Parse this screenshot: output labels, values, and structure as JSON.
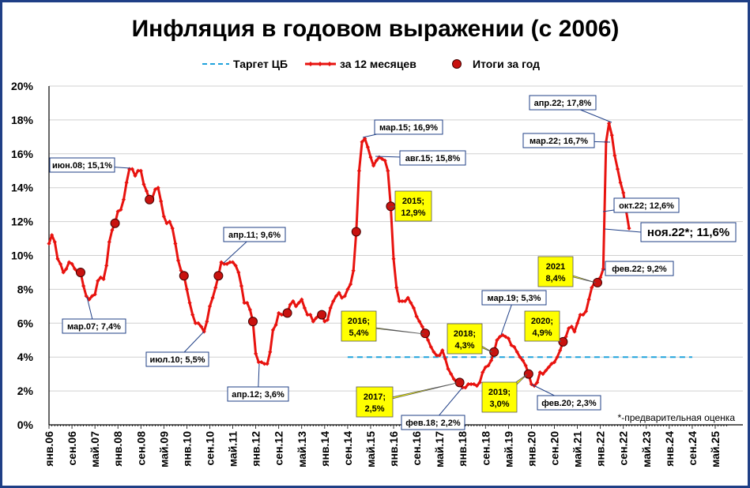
{
  "chart_data": {
    "type": "line",
    "title": "Инфляция в годовом выражении (с 2006)",
    "y_ticks": [
      "0%",
      "2%",
      "4%",
      "6%",
      "8%",
      "10%",
      "12%",
      "14%",
      "16%",
      "18%",
      "20%"
    ],
    "ylim": [
      0,
      20
    ],
    "x_ticks": [
      "янв.06",
      "сен.06",
      "май.07",
      "янв.08",
      "сен.08",
      "май.09",
      "янв.10",
      "сен.10",
      "май.11",
      "янв.12",
      "сен.12",
      "май.13",
      "янв.14",
      "сен.14",
      "май.15",
      "янв.16",
      "сен.16",
      "май.17",
      "янв.18",
      "сен.18",
      "май.19",
      "янв.20",
      "сен.20",
      "май.21",
      "янв.22",
      "сен.22",
      "май.23",
      "янв.24",
      "сен.24",
      "май.25"
    ],
    "legend": {
      "position": "top",
      "items": [
        "Таргет ЦБ",
        "за 12 месяцев",
        "Итоги за год"
      ]
    },
    "colors": {
      "monthly": "#e8130f",
      "target": "#1fa2dc",
      "year_dot": "#c8120f",
      "frame": "#1f3f86",
      "callout_yellow": "#ffff00"
    },
    "target": {
      "value": 4.0,
      "from": "сен.14",
      "to": "сен.24"
    },
    "monthly": {
      "start": "янв.06",
      "values": [
        10.7,
        11.2,
        10.8,
        9.8,
        9.5,
        9.0,
        9.2,
        9.6,
        9.5,
        9.2,
        9.0,
        9.0,
        8.2,
        7.6,
        7.4,
        7.6,
        7.7,
        8.5,
        8.7,
        8.6,
        9.4,
        10.8,
        11.5,
        11.9,
        12.6,
        12.7,
        13.3,
        14.3,
        15.1,
        15.1,
        14.7,
        15.0,
        15.0,
        14.2,
        13.8,
        13.3,
        13.4,
        13.9,
        14.0,
        13.2,
        12.3,
        11.9,
        12.0,
        11.6,
        10.7,
        9.7,
        9.1,
        8.8,
        8.0,
        7.2,
        6.5,
        6.0,
        6.0,
        5.8,
        5.5,
        6.1,
        7.0,
        7.5,
        8.1,
        8.8,
        9.6,
        9.5,
        9.5,
        9.6,
        9.6,
        9.4,
        9.0,
        8.2,
        7.2,
        7.2,
        6.8,
        6.1,
        4.2,
        3.7,
        3.7,
        3.6,
        3.6,
        4.3,
        5.6,
        5.9,
        6.6,
        6.5,
        6.5,
        6.6,
        7.1,
        7.3,
        7.0,
        7.2,
        7.4,
        6.9,
        6.5,
        6.5,
        6.1,
        6.3,
        6.5,
        6.5,
        6.1,
        6.2,
        6.9,
        7.3,
        7.6,
        7.8,
        7.5,
        7.6,
        8.0,
        8.3,
        9.1,
        11.4,
        15.0,
        16.7,
        16.9,
        16.4,
        15.8,
        15.3,
        15.6,
        15.8,
        15.7,
        15.6,
        15.0,
        12.9,
        9.8,
        8.1,
        7.3,
        7.3,
        7.3,
        7.5,
        7.2,
        6.9,
        6.4,
        6.1,
        5.8,
        5.4,
        5.0,
        4.6,
        4.3,
        4.1,
        4.1,
        4.4,
        3.9,
        3.3,
        3.0,
        2.7,
        2.5,
        2.5,
        2.2,
        2.2,
        2.4,
        2.4,
        2.4,
        2.3,
        2.5,
        3.1,
        3.4,
        3.5,
        3.8,
        4.3,
        5.0,
        5.2,
        5.3,
        5.2,
        5.1,
        4.7,
        4.6,
        4.3,
        4.0,
        3.8,
        3.5,
        3.0,
        2.4,
        2.3,
        2.5,
        3.1,
        3.0,
        3.2,
        3.4,
        3.6,
        3.7,
        4.0,
        4.4,
        4.9,
        5.2,
        5.7,
        5.8,
        5.5,
        6.0,
        6.5,
        6.5,
        6.7,
        7.4,
        8.1,
        8.4,
        8.4,
        8.7,
        9.2,
        16.7,
        17.8,
        17.1,
        15.9,
        15.1,
        14.3,
        13.7,
        12.6,
        11.6
      ]
    },
    "yearly_totals": [
      {
        "year": "2006",
        "month": "дек.06",
        "value": 9.0
      },
      {
        "year": "2007",
        "month": "дек.07",
        "value": 11.9
      },
      {
        "year": "2008",
        "month": "дек.08",
        "value": 13.3
      },
      {
        "year": "2009",
        "month": "дек.09",
        "value": 8.8
      },
      {
        "year": "2010",
        "month": "дек.10",
        "value": 8.8
      },
      {
        "year": "2011",
        "month": "дек.11",
        "value": 6.1
      },
      {
        "year": "2012",
        "month": "дек.12",
        "value": 6.6
      },
      {
        "year": "2013",
        "month": "дек.13",
        "value": 6.5
      },
      {
        "year": "2014",
        "month": "дек.14",
        "value": 11.4
      },
      {
        "year": "2015",
        "month": "дек.15",
        "value": 12.9
      },
      {
        "year": "2016",
        "month": "дек.16",
        "value": 5.4
      },
      {
        "year": "2017",
        "month": "дек.17",
        "value": 2.5
      },
      {
        "year": "2018",
        "month": "дек.18",
        "value": 4.3
      },
      {
        "year": "2019",
        "month": "дек.19",
        "value": 3.0
      },
      {
        "year": "2020",
        "month": "дек.20",
        "value": 4.9
      },
      {
        "year": "2021",
        "month": "дек.21",
        "value": 8.4
      }
    ],
    "annotations": {
      "white": [
        {
          "text": "июн.08; 15,1%"
        },
        {
          "text": "мар.07; 7,4%"
        },
        {
          "text": "июл.10; 5,5%"
        },
        {
          "text": "апр.11; 9,6%"
        },
        {
          "text": "апр.12; 3,6%"
        },
        {
          "text": "мар.15; 16,9%"
        },
        {
          "text": "авг.15; 15,8%"
        },
        {
          "text": "фев.18; 2,2%"
        },
        {
          "text": "мар.19; 5,3%"
        },
        {
          "text": "фев.20; 2,3%"
        },
        {
          "text": "апр.22; 17,8%"
        },
        {
          "text": "мар.22; 16,7%"
        },
        {
          "text": "окт.22; 12,6%"
        },
        {
          "text": "фев.22; 9,2%"
        }
      ],
      "white_big": {
        "text": "ноя.22*; 11,6%"
      },
      "yellow": [
        {
          "l1": "2015;",
          "l2": "12,9%"
        },
        {
          "l1": "2016;",
          "l2": "5,4%"
        },
        {
          "l1": "2017;",
          "l2": "2,5%"
        },
        {
          "l1": "2018;",
          "l2": "4,3%"
        },
        {
          "l1": "2019;",
          "l2": "3,0%"
        },
        {
          "l1": "2020;",
          "l2": "4,9%"
        },
        {
          "l1": "2021",
          "l2": "8,4%"
        }
      ]
    },
    "footnote": "*-предварительная оценка"
  }
}
